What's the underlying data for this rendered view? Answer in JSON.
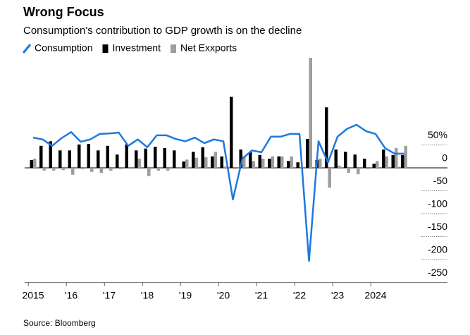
{
  "chart_data": {
    "type": "bar-line",
    "title": "Wrong Focus",
    "subtitle": "Consumption's contribution to GDP growth is on the decline",
    "source": "Source: Bloomberg",
    "categories": [
      "2015",
      null,
      null,
      null,
      "'16",
      null,
      null,
      null,
      "'17",
      null,
      null,
      null,
      "'18",
      null,
      null,
      null,
      "'19",
      null,
      null,
      null,
      "'20",
      null,
      null,
      null,
      "'21",
      null,
      null,
      null,
      "'22",
      null,
      null,
      null,
      "'23",
      null,
      null,
      null,
      "2024",
      null,
      null,
      null
    ],
    "series": [
      {
        "name": "Consumption",
        "type": "line",
        "color": "#1f77e0",
        "values": [
          66,
          62,
          48,
          65,
          78,
          57,
          62,
          74,
          75,
          77,
          48,
          62,
          45,
          71,
          71,
          63,
          58,
          66,
          54,
          62,
          58,
          -69,
          20,
          38,
          34,
          68,
          68,
          74,
          74,
          -203,
          58,
          12,
          68,
          85,
          94,
          80,
          74,
          43,
          31,
          31
        ]
      },
      {
        "name": "Investment",
        "type": "bar",
        "color": "#000000",
        "values": [
          17,
          48,
          58,
          38,
          38,
          51,
          52,
          38,
          48,
          29,
          51,
          38,
          42,
          46,
          43,
          38,
          14,
          35,
          45,
          25,
          25,
          155,
          40,
          35,
          28,
          20,
          25,
          15,
          12,
          63,
          17,
          132,
          40,
          35,
          29,
          20,
          9,
          40,
          28,
          28
        ]
      },
      {
        "name": "Net Exxports",
        "type": "bar",
        "color": "#9e9e9e",
        "values": [
          20,
          -6,
          -6,
          -5,
          -15,
          -3,
          -9,
          -11,
          -6,
          -3,
          0,
          20,
          -18,
          -6,
          -6,
          0,
          18,
          22,
          23,
          35,
          3,
          -3,
          25,
          15,
          20,
          25,
          25,
          25,
          0,
          240,
          20,
          -43,
          5,
          -11,
          -14,
          -3,
          15,
          25,
          43,
          48
        ]
      }
    ],
    "ylim": [
      -250,
      250
    ],
    "yticks": [
      {
        "value": 50,
        "label": "50%"
      },
      0,
      -50,
      -100,
      -150,
      -200,
      -250
    ]
  }
}
